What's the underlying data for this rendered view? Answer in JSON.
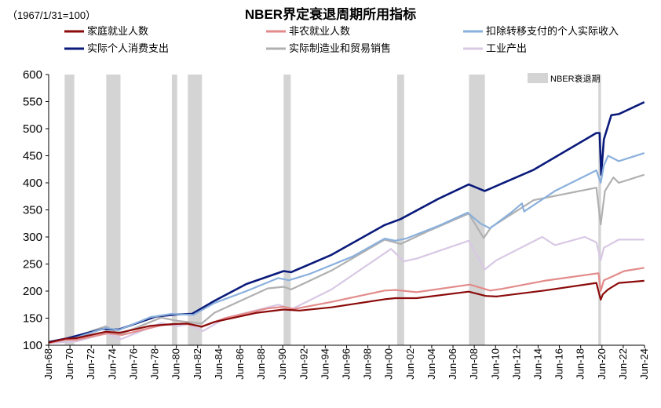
{
  "chart_data": {
    "type": "line",
    "title": "NBER界定衰退周期所用指标",
    "base_note": "（1967/1/31=100）",
    "xlabel": "",
    "ylabel": "",
    "ylim": [
      100,
      600
    ],
    "xlim": [
      1968.42,
      2024.42
    ],
    "y_ticks": [
      "100",
      "150",
      "200",
      "250",
      "300",
      "350",
      "400",
      "450",
      "500",
      "550",
      "600"
    ],
    "x_ticks": [
      "Jun-68",
      "Jun-70",
      "Jun-72",
      "Jun-74",
      "Jun-76",
      "Jun-78",
      "Jun-80",
      "Jun-82",
      "Jun-84",
      "Jun-86",
      "Jun-88",
      "Jun-90",
      "Jun-92",
      "Jun-94",
      "Jun-96",
      "Jun-98",
      "Jun-00",
      "Jun-02",
      "Jun-04",
      "Jun-06",
      "Jun-08",
      "Jun-10",
      "Jun-12",
      "Jun-14",
      "Jun-16",
      "Jun-18",
      "Jun-20",
      "Jun-22",
      "Jun-24"
    ],
    "recession_label": "NBER衰退期",
    "recessions": [
      [
        1969.92,
        1970.83
      ],
      [
        1973.83,
        1975.17
      ],
      [
        1980.0,
        1980.5
      ],
      [
        1981.5,
        1982.83
      ],
      [
        1990.5,
        1991.17
      ],
      [
        2001.17,
        2001.83
      ],
      [
        2007.92,
        2009.42
      ],
      [
        2020.08,
        2020.33
      ]
    ],
    "series": [
      {
        "name": "家庭就业人数",
        "color": "#8b0a0a",
        "x": [
          1968.42,
          1970,
          1971,
          1973.8,
          1975.1,
          1978,
          1980,
          1981.5,
          1982.8,
          1984,
          1988,
          1990.5,
          1992,
          1995,
          2000,
          2001,
          2003,
          2007.9,
          2009.5,
          2010.5,
          2015,
          2019.9,
          2020.3,
          2020.5,
          2021,
          2022,
          2024.4
        ],
        "values": [
          105,
          112,
          113,
          125,
          123,
          136,
          139,
          140,
          134,
          143,
          160,
          166,
          164,
          170,
          185,
          187,
          187,
          199,
          191,
          190,
          201,
          215,
          184,
          194,
          203,
          215,
          219
        ]
      },
      {
        "name": "非农就业人数",
        "color": "#e38b8b",
        "x": [
          1968.42,
          1970,
          1971,
          1974,
          1975.3,
          1979,
          1981,
          1982.8,
          1985,
          1989,
          1990.5,
          1991.5,
          1995,
          2000,
          2001,
          2003,
          2008,
          2009.9,
          2011,
          2015,
          2020.1,
          2020.3,
          2020.6,
          2021.5,
          2022.5,
          2024.4
        ],
        "values": [
          104,
          110,
          110,
          122,
          119,
          137,
          140,
          135,
          150,
          168,
          171,
          167,
          180,
          201,
          202,
          198,
          212,
          201,
          204,
          219,
          233,
          200,
          220,
          228,
          237,
          243
        ]
      },
      {
        "name": "扣除转移支付的个人实际收入",
        "color": "#8ab0dc",
        "x": [
          1968.42,
          1970,
          1971,
          1973.8,
          1975,
          1978,
          1980,
          1982,
          1984,
          1987,
          1990,
          1991,
          1993,
          1997,
          2000,
          2001,
          2002,
          2005,
          2007.8,
          2009,
          2009.9,
          2012,
          2012.9,
          2013.1,
          2016,
          2019.9,
          2020.3,
          2020.6,
          2021,
          2022,
          2024.4
        ],
        "values": [
          105,
          110,
          114,
          132,
          128,
          152,
          158,
          156,
          178,
          200,
          224,
          220,
          232,
          264,
          297,
          293,
          297,
          320,
          345,
          325,
          316,
          347,
          362,
          347,
          385,
          423,
          400,
          432,
          450,
          440,
          455
        ]
      },
      {
        "name": "实际个人消费支出",
        "color": "#0a1a7a",
        "x": [
          1968.42,
          1970,
          1973.5,
          1975,
          1978.5,
          1980.5,
          1981.9,
          1984,
          1987,
          1990.5,
          1991.2,
          1995,
          2000,
          2001.5,
          2005,
          2007.9,
          2009.4,
          2010,
          2014,
          2019.9,
          2020.2,
          2020.35,
          2020.6,
          2021.3,
          2022,
          2024.4
        ],
        "values": [
          106,
          112,
          130,
          129,
          153,
          157,
          158,
          182,
          213,
          237,
          235,
          267,
          322,
          333,
          370,
          397,
          385,
          390,
          424,
          492,
          492,
          415,
          480,
          525,
          527,
          549
        ]
      },
      {
        "name": "实际制造业和贸易销售",
        "color": "#b0b0b0",
        "x": [
          1968.42,
          1970,
          1973.8,
          1975.1,
          1979,
          1980.5,
          1982.8,
          1984,
          1989,
          1990.5,
          1991.2,
          1995,
          2000,
          2001.5,
          2004,
          2007.9,
          2009.3,
          2010,
          2014,
          2019.9,
          2020.3,
          2020.7,
          2021.5,
          2022,
          2024.4
        ],
        "values": [
          106,
          110,
          135,
          120,
          151,
          145,
          140,
          160,
          205,
          208,
          203,
          238,
          295,
          287,
          310,
          343,
          298,
          318,
          368,
          391,
          323,
          385,
          410,
          400,
          415
        ]
      },
      {
        "name": "工业产出",
        "color": "#d8c8e4",
        "x": [
          1968.42,
          1970,
          1971,
          1973.8,
          1975.2,
          1979,
          1980.5,
          1981.5,
          1982.9,
          1985,
          1990,
          1991.3,
          1995,
          2000.6,
          2001.8,
          2003,
          2007.9,
          2009.4,
          2010.5,
          2014.8,
          2016,
          2018.8,
          2019.9,
          2020.3,
          2020.6,
          2022,
          2024.4
        ],
        "values": [
          104,
          106,
          107,
          122,
          111,
          141,
          135,
          139,
          126,
          150,
          175,
          167,
          203,
          278,
          255,
          260,
          293,
          240,
          257,
          300,
          285,
          300,
          290,
          257,
          280,
          295,
          295
        ]
      }
    ]
  }
}
